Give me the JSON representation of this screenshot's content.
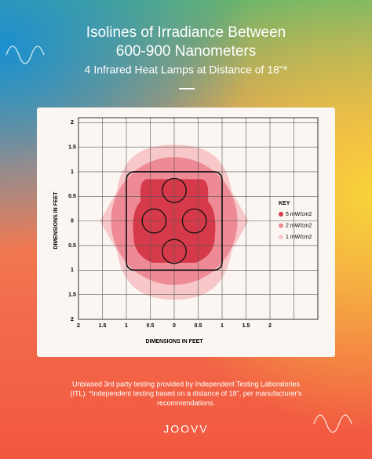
{
  "chart_data": {
    "type": "contour",
    "title": "Isolines of Irradiance Between",
    "title_line2": "600-900 Nanometers",
    "subtitle": "4 Infrared Heat Lamps at Distance of 18\"*",
    "x_label": "DIMENSIONS IN FEET",
    "y_label": "DIMENSIONS IN FEET",
    "legend_title": "KEY",
    "xlim": [
      -2,
      3
    ],
    "ylim": [
      -2,
      2.1
    ],
    "xticks": [
      {
        "value": -2,
        "label": "2"
      },
      {
        "value": -1.5,
        "label": "1.5"
      },
      {
        "value": -1,
        "label": "1"
      },
      {
        "value": -0.5,
        "label": "0.5"
      },
      0,
      0.5,
      1,
      1.5,
      2
    ],
    "yticks": [
      {
        "value": -2,
        "label": "2"
      },
      {
        "value": -1.5,
        "label": "1.5"
      },
      {
        "value": -1,
        "label": "1"
      },
      {
        "value": -0.5,
        "label": "0.5"
      },
      0,
      0.5,
      1,
      1.5,
      2
    ],
    "grid": true,
    "series": [
      {
        "name": "5 mW/cm2",
        "color": "#d63a4a"
      },
      {
        "name": "2 mW/cm2",
        "color": "#ee8a95"
      },
      {
        "name": "1 mW/cm2",
        "color": "#f7c7c9"
      }
    ]
  },
  "footer": {
    "note": [
      "Unbiased 3rd party testing provided by Independent Testing Laboratories",
      "(ITL). *Independent testing based on a distance of 18\", per manufacturer's",
      "recommendations."
    ],
    "brand": "JOOVV"
  }
}
